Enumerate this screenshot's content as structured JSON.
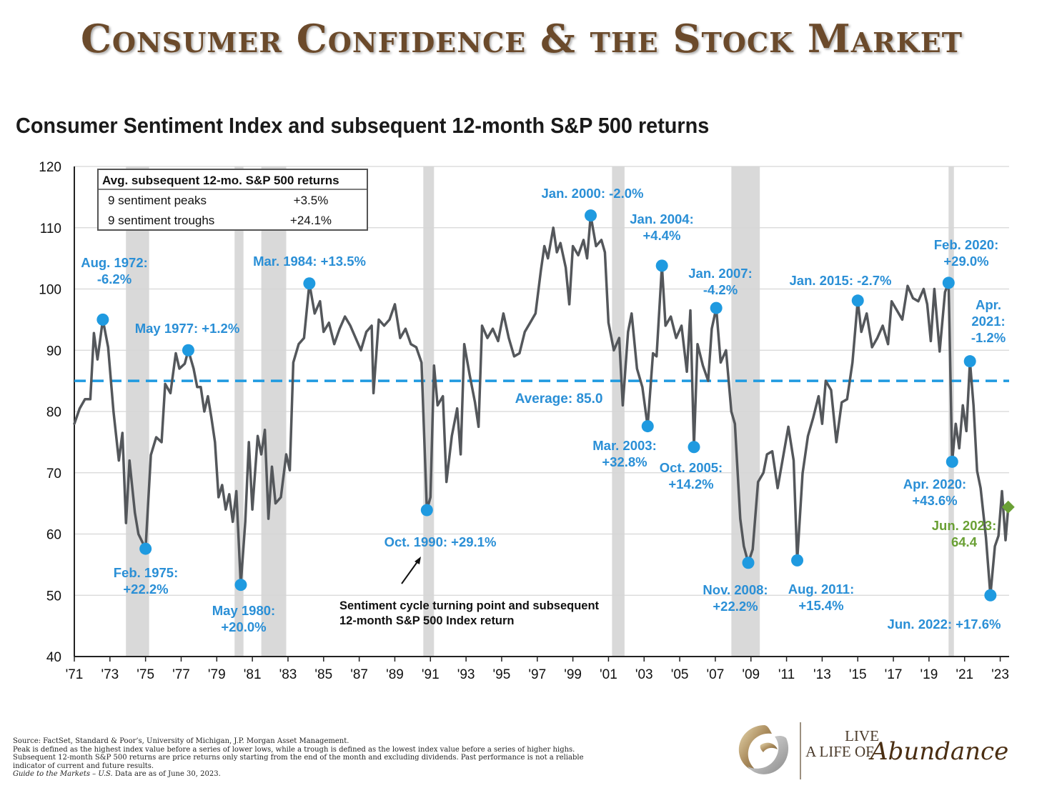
{
  "page_title": "Consumer Confidence & the Stock Market",
  "chart_title": "Consumer Sentiment Index and subsequent 12-month S&P 500 returns",
  "colors": {
    "line": "#54575b",
    "accent": "#1f9ae0",
    "label": "#2a8fd6",
    "current": "#6aa035",
    "title_brown": "#6b4a2b",
    "recession": "#d9d9d9"
  },
  "legend_box": {
    "header": "Avg. subsequent 12-mo. S&P 500 returns",
    "rows": [
      {
        "label": "9 sentiment peaks",
        "value": "+3.5%"
      },
      {
        "label": "9 sentiment troughs",
        "value": "+24.1%"
      }
    ]
  },
  "chart_data": {
    "type": "line",
    "title": "Consumer Sentiment Index and subsequent 12-month S&P 500 returns",
    "ylim": [
      40,
      120
    ],
    "yticks": [
      40,
      50,
      60,
      70,
      80,
      90,
      100,
      110,
      120
    ],
    "xlim": [
      1971.0,
      2023.5
    ],
    "xticks": [
      {
        "value": 1971,
        "label": "'71"
      },
      {
        "value": 1973,
        "label": "'73"
      },
      {
        "value": 1975,
        "label": "'75"
      },
      {
        "value": 1977,
        "label": "'77"
      },
      {
        "value": 1979,
        "label": "'79"
      },
      {
        "value": 1981,
        "label": "'81"
      },
      {
        "value": 1983,
        "label": "'83"
      },
      {
        "value": 1985,
        "label": "'85"
      },
      {
        "value": 1987,
        "label": "'87"
      },
      {
        "value": 1989,
        "label": "'89"
      },
      {
        "value": 1991,
        "label": "'91"
      },
      {
        "value": 1993,
        "label": "'93"
      },
      {
        "value": 1995,
        "label": "'95"
      },
      {
        "value": 1997,
        "label": "'97"
      },
      {
        "value": 1999,
        "label": "'99"
      },
      {
        "value": 2001,
        "label": "'01"
      },
      {
        "value": 2003,
        "label": "'03"
      },
      {
        "value": 2005,
        "label": "'05"
      },
      {
        "value": 2007,
        "label": "'07"
      },
      {
        "value": 2009,
        "label": "'09"
      },
      {
        "value": 2011,
        "label": "'11"
      },
      {
        "value": 2013,
        "label": "'13"
      },
      {
        "value": 2015,
        "label": "'15"
      },
      {
        "value": 2017,
        "label": "'17"
      },
      {
        "value": 2019,
        "label": "'19"
      },
      {
        "value": 2021,
        "label": "'21"
      },
      {
        "value": 2023,
        "label": "'23"
      }
    ],
    "average": {
      "value": 85.0,
      "label": "Average: 85.0"
    },
    "recessions": [
      [
        1973.9,
        1975.2
      ],
      [
        1980.0,
        1980.5
      ],
      [
        1981.5,
        1982.9
      ],
      [
        1990.6,
        1991.2
      ],
      [
        2001.2,
        2001.9
      ],
      [
        2007.9,
        2009.5
      ],
      [
        2020.1,
        2020.4
      ]
    ],
    "series": [
      {
        "points": [
          [
            1971.0,
            78.0
          ],
          [
            1971.3,
            80.5
          ],
          [
            1971.6,
            82.0
          ],
          [
            1971.9,
            82.0
          ],
          [
            1972.1,
            92.8
          ],
          [
            1972.3,
            88.5
          ],
          [
            1972.6,
            95.0
          ],
          [
            1972.9,
            90.5
          ],
          [
            1973.2,
            80.0
          ],
          [
            1973.5,
            72.0
          ],
          [
            1973.7,
            76.5
          ],
          [
            1973.9,
            61.8
          ],
          [
            1974.1,
            72.0
          ],
          [
            1974.4,
            63.5
          ],
          [
            1974.6,
            60.0
          ],
          [
            1975.0,
            57.6
          ],
          [
            1975.3,
            72.9
          ],
          [
            1975.6,
            75.8
          ],
          [
            1975.9,
            75.0
          ],
          [
            1976.1,
            84.5
          ],
          [
            1976.4,
            83.0
          ],
          [
            1976.7,
            89.5
          ],
          [
            1976.9,
            87.0
          ],
          [
            1977.2,
            87.8
          ],
          [
            1977.4,
            90.0
          ],
          [
            1977.7,
            87.0
          ],
          [
            1977.9,
            84.0
          ],
          [
            1978.1,
            84.0
          ],
          [
            1978.3,
            80.0
          ],
          [
            1978.5,
            82.5
          ],
          [
            1978.7,
            79.0
          ],
          [
            1978.9,
            75.0
          ],
          [
            1979.1,
            66.0
          ],
          [
            1979.3,
            68.0
          ],
          [
            1979.5,
            64.0
          ],
          [
            1979.7,
            66.5
          ],
          [
            1979.9,
            62.0
          ],
          [
            1980.1,
            67.0
          ],
          [
            1980.35,
            51.7
          ],
          [
            1980.6,
            62.0
          ],
          [
            1980.8,
            75.0
          ],
          [
            1981.0,
            64.0
          ],
          [
            1981.3,
            76.0
          ],
          [
            1981.5,
            73.0
          ],
          [
            1981.7,
            77.0
          ],
          [
            1981.9,
            62.5
          ],
          [
            1982.1,
            71.0
          ],
          [
            1982.3,
            65.0
          ],
          [
            1982.6,
            66.0
          ],
          [
            1982.9,
            73.0
          ],
          [
            1983.1,
            70.4
          ],
          [
            1983.3,
            88.0
          ],
          [
            1983.6,
            91.0
          ],
          [
            1983.9,
            92.0
          ],
          [
            1984.2,
            100.9
          ],
          [
            1984.5,
            96.0
          ],
          [
            1984.8,
            98.0
          ],
          [
            1985.0,
            93.0
          ],
          [
            1985.3,
            94.5
          ],
          [
            1985.6,
            91.0
          ],
          [
            1985.9,
            93.5
          ],
          [
            1986.2,
            95.5
          ],
          [
            1986.5,
            94.0
          ],
          [
            1986.8,
            92.0
          ],
          [
            1987.1,
            90.0
          ],
          [
            1987.4,
            93.0
          ],
          [
            1987.7,
            94.0
          ],
          [
            1987.8,
            83.0
          ],
          [
            1988.1,
            95.0
          ],
          [
            1988.4,
            94.0
          ],
          [
            1988.7,
            95.0
          ],
          [
            1989.0,
            97.5
          ],
          [
            1989.3,
            92.0
          ],
          [
            1989.6,
            93.5
          ],
          [
            1989.9,
            91.0
          ],
          [
            1990.2,
            90.5
          ],
          [
            1990.5,
            88.0
          ],
          [
            1990.8,
            63.9
          ],
          [
            1991.0,
            66.0
          ],
          [
            1991.2,
            87.5
          ],
          [
            1991.4,
            81.0
          ],
          [
            1991.7,
            82.5
          ],
          [
            1991.9,
            68.5
          ],
          [
            1992.2,
            76.0
          ],
          [
            1992.5,
            80.5
          ],
          [
            1992.7,
            73.0
          ],
          [
            1992.9,
            91.0
          ],
          [
            1993.2,
            86.0
          ],
          [
            1993.5,
            81.5
          ],
          [
            1993.7,
            77.5
          ],
          [
            1993.9,
            94.0
          ],
          [
            1994.2,
            92.0
          ],
          [
            1994.5,
            93.5
          ],
          [
            1994.8,
            91.5
          ],
          [
            1995.1,
            96.0
          ],
          [
            1995.4,
            92.0
          ],
          [
            1995.7,
            89.0
          ],
          [
            1996.0,
            89.5
          ],
          [
            1996.3,
            93.0
          ],
          [
            1996.6,
            94.5
          ],
          [
            1996.9,
            96.0
          ],
          [
            1997.2,
            103.0
          ],
          [
            1997.4,
            107.0
          ],
          [
            1997.6,
            105.0
          ],
          [
            1997.9,
            110.0
          ],
          [
            1998.1,
            106.0
          ],
          [
            1998.3,
            107.5
          ],
          [
            1998.6,
            103.5
          ],
          [
            1998.8,
            97.5
          ],
          [
            1999.0,
            107.0
          ],
          [
            1999.3,
            105.5
          ],
          [
            1999.6,
            108.0
          ],
          [
            1999.8,
            105.0
          ],
          [
            2000.0,
            112.0
          ],
          [
            2000.3,
            107.0
          ],
          [
            2000.6,
            108.0
          ],
          [
            2000.8,
            106.0
          ],
          [
            2001.0,
            94.5
          ],
          [
            2001.3,
            90.0
          ],
          [
            2001.6,
            92.0
          ],
          [
            2001.8,
            81.0
          ],
          [
            2002.1,
            93.0
          ],
          [
            2002.3,
            96.0
          ],
          [
            2002.6,
            87.0
          ],
          [
            2002.9,
            84.0
          ],
          [
            2003.2,
            77.6
          ],
          [
            2003.5,
            89.5
          ],
          [
            2003.7,
            89.0
          ],
          [
            2004.0,
            103.8
          ],
          [
            2004.2,
            94.0
          ],
          [
            2004.5,
            95.5
          ],
          [
            2004.8,
            92.0
          ],
          [
            2005.1,
            94.0
          ],
          [
            2005.4,
            86.5
          ],
          [
            2005.6,
            96.5
          ],
          [
            2005.8,
            74.2
          ],
          [
            2006.0,
            91.0
          ],
          [
            2006.3,
            87.5
          ],
          [
            2006.6,
            85.0
          ],
          [
            2006.8,
            93.5
          ],
          [
            2007.05,
            96.9
          ],
          [
            2007.3,
            88.0
          ],
          [
            2007.6,
            90.0
          ],
          [
            2007.9,
            80.0
          ],
          [
            2008.1,
            78.0
          ],
          [
            2008.4,
            62.5
          ],
          [
            2008.6,
            58.0
          ],
          [
            2008.85,
            55.3
          ],
          [
            2009.1,
            57.5
          ],
          [
            2009.4,
            68.5
          ],
          [
            2009.7,
            70.0
          ],
          [
            2009.9,
            73.0
          ],
          [
            2010.2,
            73.5
          ],
          [
            2010.5,
            67.5
          ],
          [
            2010.8,
            72.5
          ],
          [
            2011.1,
            77.5
          ],
          [
            2011.4,
            72.0
          ],
          [
            2011.6,
            55.7
          ],
          [
            2011.9,
            69.9
          ],
          [
            2012.2,
            76.0
          ],
          [
            2012.5,
            79.0
          ],
          [
            2012.8,
            82.5
          ],
          [
            2013.0,
            78.0
          ],
          [
            2013.2,
            85.0
          ],
          [
            2013.5,
            83.5
          ],
          [
            2013.8,
            75.0
          ],
          [
            2014.1,
            81.5
          ],
          [
            2014.4,
            82.0
          ],
          [
            2014.7,
            88.0
          ],
          [
            2015.0,
            98.1
          ],
          [
            2015.2,
            93.0
          ],
          [
            2015.5,
            96.0
          ],
          [
            2015.8,
            90.5
          ],
          [
            2016.1,
            92.0
          ],
          [
            2016.4,
            94.0
          ],
          [
            2016.7,
            91.0
          ],
          [
            2016.9,
            98.0
          ],
          [
            2017.2,
            96.5
          ],
          [
            2017.5,
            95.0
          ],
          [
            2017.8,
            100.5
          ],
          [
            2018.1,
            98.5
          ],
          [
            2018.4,
            98.0
          ],
          [
            2018.7,
            100.0
          ],
          [
            2018.9,
            97.5
          ],
          [
            2019.1,
            91.5
          ],
          [
            2019.3,
            100.0
          ],
          [
            2019.6,
            89.8
          ],
          [
            2019.9,
            99.5
          ],
          [
            2020.1,
            101.0
          ],
          [
            2020.3,
            71.8
          ],
          [
            2020.5,
            78.0
          ],
          [
            2020.7,
            74.0
          ],
          [
            2020.9,
            81.0
          ],
          [
            2021.1,
            76.8
          ],
          [
            2021.3,
            88.2
          ],
          [
            2021.5,
            81.0
          ],
          [
            2021.7,
            70.3
          ],
          [
            2021.9,
            67.5
          ],
          [
            2022.2,
            59.4
          ],
          [
            2022.45,
            50.0
          ],
          [
            2022.7,
            58.0
          ],
          [
            2022.9,
            59.7
          ],
          [
            2023.1,
            67.0
          ],
          [
            2023.3,
            59.0
          ],
          [
            2023.45,
            64.4
          ]
        ]
      }
    ],
    "turning_points": [
      {
        "date": 1972.6,
        "value": 95.0,
        "label": [
          "Aug. 1972:",
          "-6.2%"
        ]
      },
      {
        "date": 1975.0,
        "value": 57.6,
        "label": [
          "Feb. 1975:",
          "+22.2%"
        ]
      },
      {
        "date": 1977.4,
        "value": 90.0,
        "label": [
          "May 1977: +1.2%"
        ]
      },
      {
        "date": 1980.35,
        "value": 51.7,
        "label": [
          "May 1980:",
          "+20.0%"
        ]
      },
      {
        "date": 1984.2,
        "value": 100.9,
        "label": [
          "Mar. 1984: +13.5%"
        ]
      },
      {
        "date": 1990.8,
        "value": 63.9,
        "label": [
          "Oct. 1990: +29.1%"
        ]
      },
      {
        "date": 2000.0,
        "value": 112.0,
        "label": [
          "Jan. 2000: -2.0%"
        ]
      },
      {
        "date": 2003.2,
        "value": 77.6,
        "label": [
          "Mar. 2003:",
          "+32.8%"
        ]
      },
      {
        "date": 2004.0,
        "value": 103.8,
        "label": [
          "Jan. 2004:",
          "+4.4%"
        ]
      },
      {
        "date": 2005.8,
        "value": 74.2,
        "label": [
          "Oct. 2005:",
          "+14.2%"
        ]
      },
      {
        "date": 2007.05,
        "value": 96.9,
        "label": [
          "Jan. 2007:",
          "-4.2%"
        ]
      },
      {
        "date": 2008.85,
        "value": 55.3,
        "label": [
          "Nov. 2008:",
          "+22.2%"
        ]
      },
      {
        "date": 2011.6,
        "value": 55.7,
        "label": [
          "Aug. 2011:",
          "+15.4%"
        ]
      },
      {
        "date": 2015.0,
        "value": 98.1,
        "label": [
          "Jan. 2015: -2.7%"
        ]
      },
      {
        "date": 2020.1,
        "value": 101.0,
        "label": [
          "Feb. 2020:",
          "+29.0%"
        ]
      },
      {
        "date": 2020.3,
        "value": 71.8,
        "label": [
          "Apr. 2020:",
          "+43.6%"
        ]
      },
      {
        "date": 2021.3,
        "value": 88.2,
        "label": [
          "Apr.",
          "2021:",
          "-1.2%"
        ]
      },
      {
        "date": 2022.45,
        "value": 50.0,
        "label": [
          "Jun. 2022: +17.6%"
        ]
      }
    ],
    "current_point": {
      "date": 2023.45,
      "value": 64.4,
      "label": [
        "Jun. 2023:",
        "64.4"
      ]
    },
    "annotation": [
      "Sentiment cycle turning point and subsequent",
      "12-month S&P 500 Index return"
    ]
  },
  "footnote": {
    "lines": [
      "Source: FactSet, Standard & Poor’s, University of Michigan, J.P. Morgan Asset Management.",
      "Peak is defined as the highest index value before a series of lower lows, while a trough is defined as the lowest index value before a series of higher highs.",
      "Subsequent 12-month S&P 500 returns are price returns only starting from the end of the month and excluding dividends. Past performance is not a reliable",
      "indicator of current and future results."
    ],
    "guide": "Guide to the Markets – U.S.",
    "guide_tail": " Data are as of June 30, 2023."
  },
  "logo": {
    "line1": "LIVE",
    "line2": "A LIFE OF",
    "script": "Abundance"
  }
}
